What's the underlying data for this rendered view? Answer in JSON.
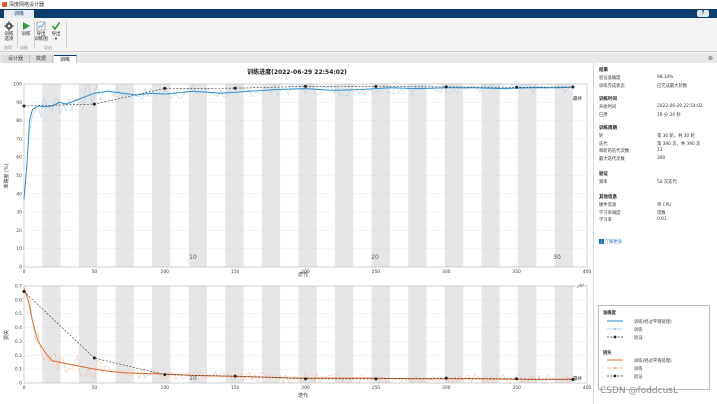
{
  "window": {
    "title": "深度网络设计器"
  },
  "ribbon": {
    "active_tab": "训练",
    "help": "?",
    "tools": [
      {
        "label": "训练\n选项",
        "icon": "gear-icon"
      },
      {
        "label": "训练",
        "icon": "play-icon"
      },
      {
        "label": "导出\n训练图",
        "icon": "export-plot-icon"
      },
      {
        "label": "导出\n▾",
        "icon": "check-export-icon"
      }
    ],
    "groups": [
      "选项",
      "训练",
      "导出"
    ]
  },
  "doc_tabs": [
    "设计器",
    "数据",
    "训练"
  ],
  "plot": {
    "title": "训练进度(2022-06-29 22:54:02)",
    "final_label_top": "最终",
    "final_label_bottom": "最终",
    "epoch_labels": [
      "10",
      "20",
      "30"
    ]
  },
  "chart_data": [
    {
      "type": "line",
      "title": "训练进度(2022-06-29 22:54:02)",
      "xlabel": "迭代",
      "ylabel": "准确度 (%)",
      "xlim": [
        0,
        400
      ],
      "ylim": [
        0,
        100
      ],
      "xticks": [
        0,
        50,
        100,
        150,
        200,
        250,
        300,
        350,
        400
      ],
      "yticks": [
        0,
        10,
        20,
        30,
        40,
        50,
        60,
        70,
        80,
        90,
        100
      ],
      "series": [
        {
          "name": "训练(经过平滑处理)",
          "color": "#2b8fd6",
          "x": [
            0,
            2,
            4,
            6,
            10,
            15,
            20,
            25,
            30,
            40,
            50,
            60,
            70,
            80,
            90,
            100,
            120,
            140,
            160,
            180,
            200,
            220,
            240,
            260,
            280,
            300,
            320,
            340,
            360,
            380,
            390
          ],
          "values": [
            37,
            55,
            80,
            86,
            88,
            87.5,
            88,
            90,
            89,
            92,
            95,
            96,
            95,
            94,
            95,
            94.5,
            96,
            95,
            96,
            97,
            97.5,
            96.5,
            97,
            98,
            97.5,
            98,
            98,
            97.5,
            98,
            98,
            98.3
          ]
        },
        {
          "name": "验证",
          "color": "#333333",
          "x": [
            0,
            50,
            100,
            150,
            200,
            250,
            300,
            350,
            390
          ],
          "values": [
            88,
            89,
            97.6,
            97.7,
            98.7,
            98.6,
            98.4,
            98.2,
            98.34
          ]
        }
      ]
    },
    {
      "type": "line",
      "xlabel": "迭代",
      "ylabel": "损失",
      "xlim": [
        0,
        400
      ],
      "ylim": [
        0,
        0.7
      ],
      "xticks": [
        0,
        50,
        100,
        150,
        200,
        250,
        300,
        350,
        400
      ],
      "yticks": [
        0,
        0.1,
        0.2,
        0.3,
        0.4,
        0.5,
        0.6,
        0.7
      ],
      "series": [
        {
          "name": "训练(经过平滑处理)",
          "color": "#e06a2c",
          "x": [
            0,
            3,
            6,
            10,
            15,
            20,
            30,
            40,
            50,
            60,
            70,
            80,
            100,
            120,
            140,
            160,
            180,
            200,
            240,
            280,
            320,
            360,
            390
          ],
          "values": [
            0.68,
            0.6,
            0.45,
            0.3,
            0.22,
            0.16,
            0.14,
            0.12,
            0.1,
            0.085,
            0.075,
            0.07,
            0.065,
            0.055,
            0.05,
            0.045,
            0.04,
            0.035,
            0.035,
            0.03,
            0.03,
            0.025,
            0.028
          ]
        },
        {
          "name": "验证",
          "color": "#333333",
          "x": [
            0,
            50,
            100,
            150,
            200,
            250,
            300,
            350,
            390
          ],
          "values": [
            0.66,
            0.18,
            0.06,
            0.05,
            0.03,
            0.03,
            0.035,
            0.03,
            0.025
          ]
        }
      ]
    }
  ],
  "info": {
    "sections": [
      {
        "title": "结果",
        "rows": [
          [
            "验证准确度",
            "98.34%"
          ],
          [
            "训练完成状态",
            "已完成最大轮数"
          ]
        ]
      },
      {
        "title": "训练时间",
        "rows": [
          [
            "开始时间",
            "2022-06-29 22:54:02"
          ],
          [
            "已用",
            "19 分 34 秒"
          ]
        ]
      },
      {
        "title": "训练周期",
        "rows": [
          [
            "轮",
            "第 30 轮，共 30 轮"
          ],
          [
            "迭代",
            "第 390 次，共 390 次"
          ],
          [
            "每轮的迭代次数",
            "13"
          ],
          [
            "最大迭代次数",
            "390"
          ]
        ]
      },
      {
        "title": "验证",
        "rows": [
          [
            "频率",
            "50 次迭代"
          ]
        ]
      },
      {
        "title": "其他信息",
        "rows": [
          [
            "硬件资源",
            "单 CPU"
          ],
          [
            "学习率调度",
            "常数"
          ],
          [
            "学习率",
            "0.01"
          ]
        ]
      }
    ],
    "learn_more": "了解更多"
  },
  "legend": {
    "acc_title": "准确度",
    "loss_title": "损失",
    "items": [
      "训练(经过平滑处理)",
      "训练",
      "验证"
    ]
  },
  "watermark": "CSDN @foddcusL",
  "colors": {
    "accent": "#0b3d6e",
    "acc": "#2b8fd6",
    "loss": "#e06a2c"
  }
}
